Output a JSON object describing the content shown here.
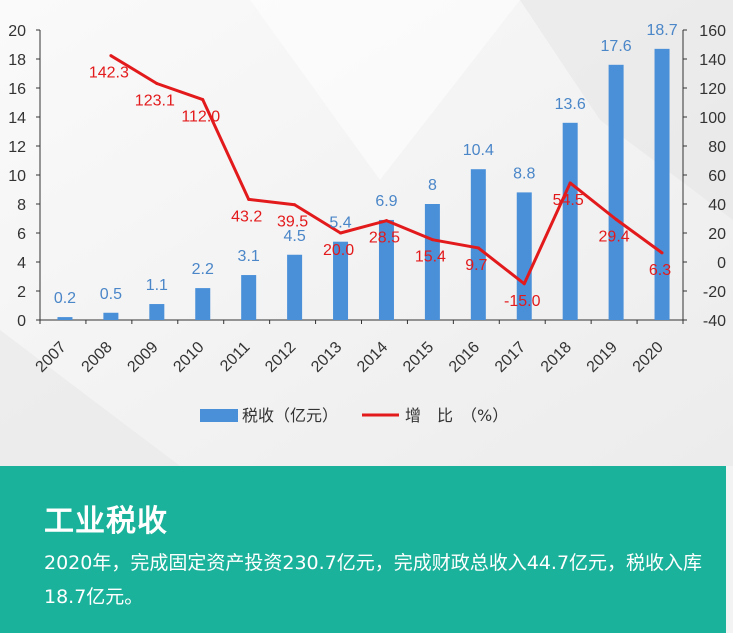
{
  "chart_data": {
    "type": "bar+line",
    "categories": [
      "2007",
      "2008",
      "2009",
      "2010",
      "2011",
      "2012",
      "2013",
      "2014",
      "2015",
      "2016",
      "2017",
      "2018",
      "2019",
      "2020"
    ],
    "series": [
      {
        "name": "税收（亿元）",
        "type": "bar",
        "axis": "left",
        "values": [
          0.2,
          0.5,
          1.1,
          2.2,
          3.1,
          4.5,
          5.4,
          6.9,
          8,
          10.4,
          8.8,
          13.6,
          17.6,
          18.7
        ],
        "labels": [
          "0.2",
          "0.5",
          "1.1",
          "2.2",
          "3.1",
          "4.5",
          "5.4",
          "6.9",
          "8",
          "10.4",
          "8.8",
          "13.6",
          "17.6",
          "18.7"
        ],
        "color": "#4a90d9"
      },
      {
        "name": "增　比　（%）",
        "type": "line",
        "axis": "right",
        "values": [
          null,
          142.3,
          123.1,
          112.0,
          43.2,
          39.5,
          20.0,
          28.5,
          15.4,
          9.7,
          -15.0,
          54.5,
          29.4,
          6.3
        ],
        "labels": [
          "",
          "142.3",
          "123.1",
          "112.0",
          "43.2",
          "39.5",
          "20.0",
          "28.5",
          "15.4",
          "9.7",
          "-15.0",
          "54.5",
          "29.4",
          "6.3"
        ],
        "color": "#e31a1c"
      }
    ],
    "y_left": {
      "min": 0,
      "max": 20,
      "ticks": [
        "0",
        "2",
        "4",
        "6",
        "8",
        "10",
        "12",
        "14",
        "16",
        "18",
        "20"
      ]
    },
    "y_right": {
      "min": -40,
      "max": 160,
      "ticks": [
        "-40",
        "-20",
        "0",
        "20",
        "40",
        "60",
        "80",
        "100",
        "120",
        "140",
        "160"
      ]
    },
    "legend_position": "bottom",
    "grid": false
  },
  "banner": {
    "title": "工业税收",
    "text": "2020年，完成固定资产投资230.7亿元，完成财政总收入44.7亿元，税收入库18.7亿元。",
    "color": "#1bb29b"
  }
}
